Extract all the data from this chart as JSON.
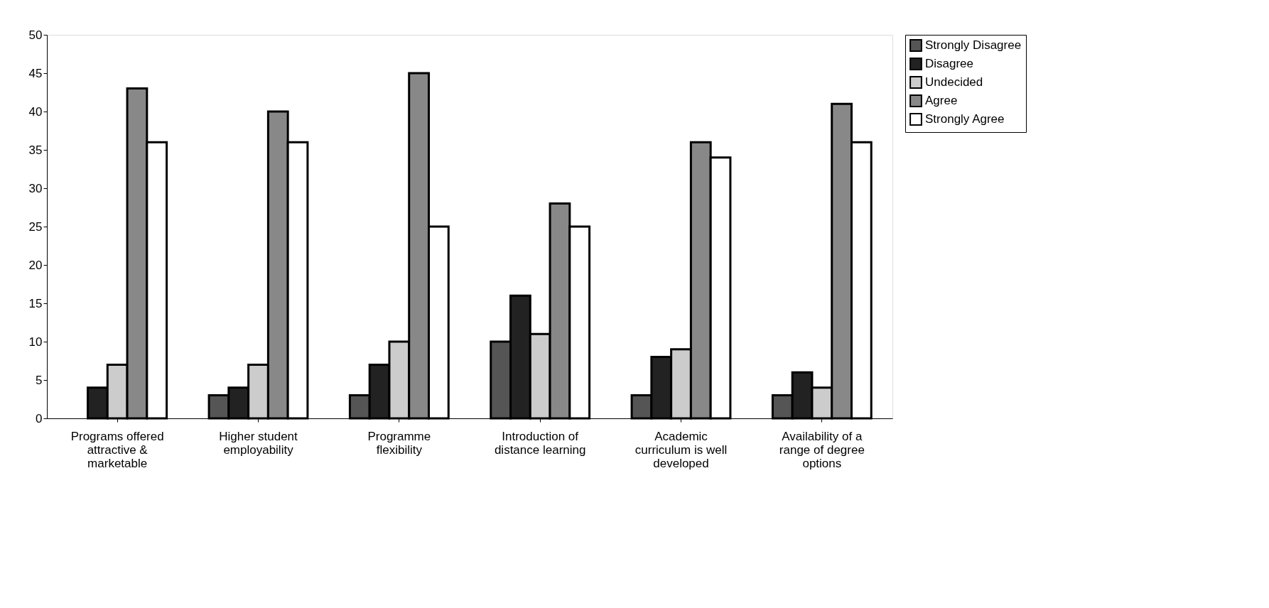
{
  "chart_data": {
    "type": "bar",
    "categories": [
      "Programs offered attractive & marketable",
      "Higher student employability",
      "Programme flexibility",
      "Introduction of distance learning",
      "Academic curriculum is well developed",
      "Availability of a range of degree options"
    ],
    "series": [
      {
        "name": "Strongly Disagree",
        "color": "#555555",
        "values": [
          null,
          3,
          3,
          10,
          3,
          3
        ]
      },
      {
        "name": "Disagree",
        "color": "#222222",
        "values": [
          4,
          4,
          7,
          16,
          8,
          6
        ]
      },
      {
        "name": "Undecided",
        "color": "#cccccc",
        "values": [
          7,
          7,
          10,
          11,
          9,
          4
        ]
      },
      {
        "name": "Agree",
        "color": "#888888",
        "values": [
          43,
          40,
          45,
          28,
          36,
          41
        ]
      },
      {
        "name": "Strongly Agree",
        "color": "#ffffff",
        "values": [
          36,
          36,
          25,
          25,
          34,
          36
        ]
      }
    ],
    "ylim": [
      0,
      50
    ],
    "yticks": [
      0,
      5,
      10,
      15,
      20,
      25,
      30,
      35,
      40,
      45,
      50
    ],
    "grid": false,
    "legend": "right"
  }
}
